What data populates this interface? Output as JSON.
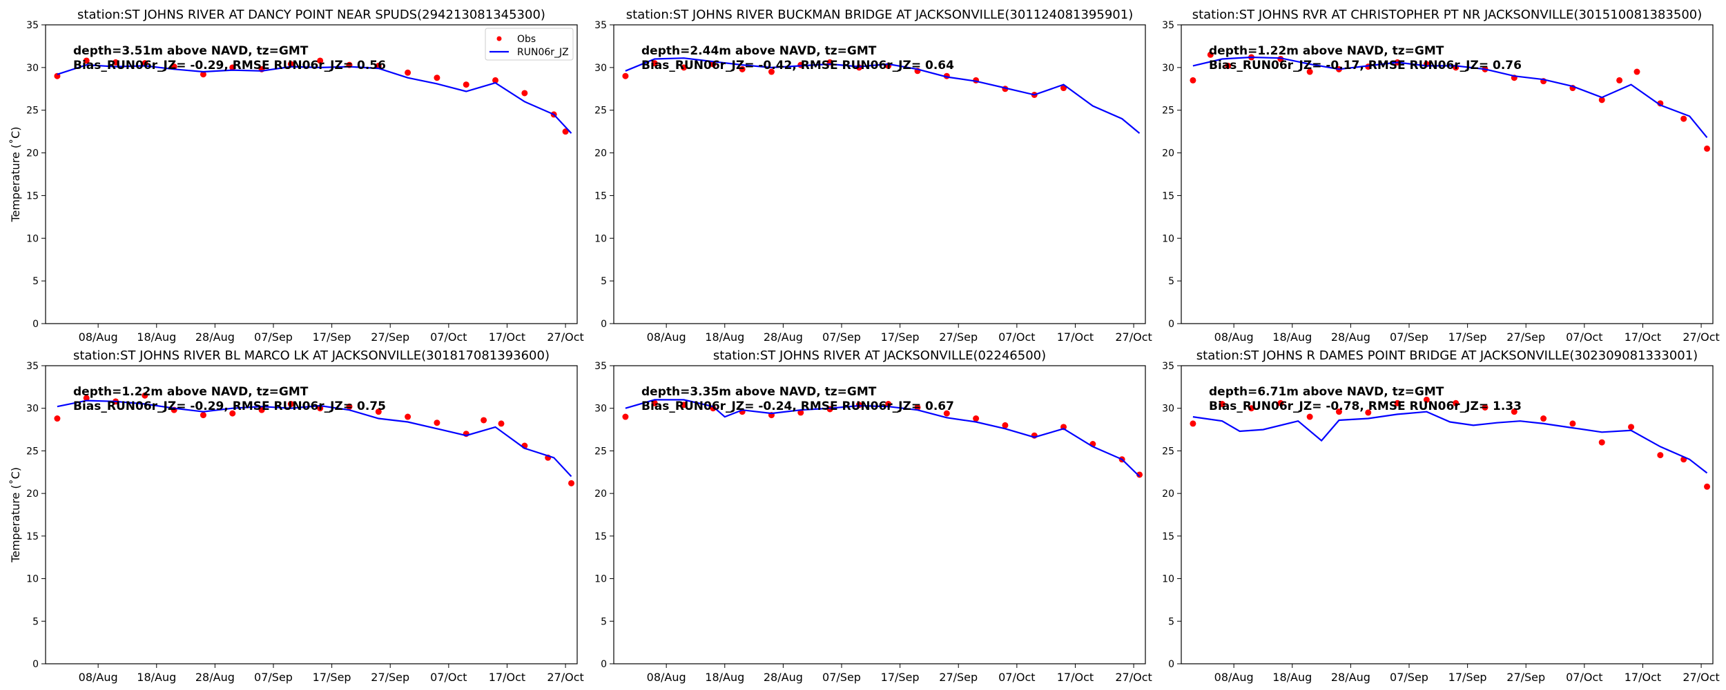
{
  "figure": {
    "ylabel": "Temperature ($^\\circ$C)",
    "ylabel_display": "Temperature (˚C)"
  },
  "chart_data": [
    {
      "type": "line",
      "title": "station:ST JOHNS RIVER AT DANCY POINT NEAR SPUDS(294213081345300)",
      "info_line1": "depth=3.51m above NAVD, tz=GMT",
      "info_line2": "Bias_RUN06r_JZ= -0.29, RMSE RUN06r_JZ= 0.56",
      "legend": [
        "Obs",
        "RUN06r_JZ"
      ],
      "xlabel": "",
      "ylabel": "Temperature (˚C)",
      "ylim": [
        0,
        35
      ],
      "yticks": [
        0,
        5,
        10,
        15,
        20,
        25,
        30,
        35
      ],
      "xticks": [
        "08/Aug",
        "18/Aug",
        "28/Aug",
        "07/Sep",
        "17/Sep",
        "27/Sep",
        "07/Oct",
        "17/Oct",
        "27/Oct"
      ],
      "series": [
        {
          "name": "Obs",
          "style": "dots",
          "color": "#ff0000",
          "x": [
            0,
            5,
            10,
            15,
            20,
            25,
            30,
            35,
            40,
            45,
            50,
            55,
            60,
            65,
            70,
            75,
            80,
            85,
            87
          ],
          "values": [
            29.0,
            30.8,
            30.6,
            30.5,
            30.1,
            29.2,
            30.0,
            29.8,
            30.4,
            30.8,
            30.3,
            30.2,
            29.4,
            28.8,
            28.0,
            28.5,
            27.0,
            24.5,
            22.5
          ]
        },
        {
          "name": "RUN06r_JZ",
          "style": "line",
          "color": "#0000ff",
          "x": [
            0,
            5,
            10,
            15,
            20,
            25,
            30,
            35,
            40,
            45,
            50,
            55,
            60,
            65,
            70,
            75,
            80,
            85,
            88
          ],
          "values": [
            29.2,
            30.3,
            30.1,
            30.2,
            29.8,
            29.5,
            29.7,
            29.6,
            30.1,
            30.0,
            30.1,
            29.9,
            28.8,
            28.1,
            27.2,
            28.2,
            26.0,
            24.5,
            22.3
          ]
        }
      ]
    },
    {
      "type": "line",
      "title": "station:ST JOHNS RIVER BUCKMAN BRIDGE AT JACKSONVILLE(301124081395901)",
      "info_line1": "depth=2.44m above NAVD, tz=GMT",
      "info_line2": "Bias_RUN06r_JZ= -0.42, RMSE RUN06r_JZ= 0.64",
      "legend": [],
      "xlabel": "",
      "ylabel": "",
      "ylim": [
        0,
        35
      ],
      "yticks": [
        0,
        5,
        10,
        15,
        20,
        25,
        30,
        35
      ],
      "xticks": [
        "08/Aug",
        "18/Aug",
        "28/Aug",
        "07/Sep",
        "17/Sep",
        "27/Sep",
        "07/Oct",
        "17/Oct",
        "27/Oct"
      ],
      "series": [
        {
          "name": "Obs",
          "style": "dots",
          "color": "#ff0000",
          "x": [
            0,
            5,
            10,
            15,
            20,
            25,
            30,
            35,
            40,
            45,
            50,
            55,
            60,
            65,
            70,
            75
          ],
          "values": [
            29.0,
            30.5,
            30.0,
            30.4,
            29.8,
            29.5,
            30.3,
            30.6,
            30.0,
            30.2,
            29.6,
            29.0,
            28.5,
            27.5,
            26.8,
            27.6
          ]
        },
        {
          "name": "RUN06r_JZ",
          "style": "line",
          "color": "#0000ff",
          "x": [
            0,
            5,
            10,
            15,
            20,
            25,
            30,
            35,
            40,
            45,
            50,
            55,
            60,
            65,
            70,
            75,
            80,
            85,
            88
          ],
          "values": [
            29.6,
            31.0,
            31.1,
            30.7,
            30.3,
            30.0,
            30.2,
            30.4,
            30.1,
            30.4,
            29.8,
            28.9,
            28.4,
            27.6,
            26.8,
            28.0,
            25.5,
            24.0,
            22.3
          ]
        }
      ]
    },
    {
      "type": "line",
      "title": "station:ST JOHNS RVR AT CHRISTOPHER PT NR JACKSONVILLE(301510081383500)",
      "info_line1": "depth=1.22m above NAVD, tz=GMT",
      "info_line2": "Bias_RUN06r_JZ= -0.17, RMSE RUN06r_JZ= 0.76",
      "legend": [],
      "xlabel": "",
      "ylabel": "",
      "ylim": [
        0,
        35
      ],
      "yticks": [
        0,
        5,
        10,
        15,
        20,
        25,
        30,
        35
      ],
      "xticks": [
        "08/Aug",
        "18/Aug",
        "28/Aug",
        "07/Sep",
        "17/Sep",
        "27/Sep",
        "07/Oct",
        "17/Oct",
        "27/Oct"
      ],
      "series": [
        {
          "name": "Obs",
          "style": "dots",
          "color": "#ff0000",
          "x": [
            0,
            3,
            6,
            10,
            15,
            20,
            25,
            30,
            35,
            40,
            45,
            50,
            55,
            60,
            65,
            70,
            73,
            76,
            80,
            84,
            88
          ],
          "values": [
            28.5,
            31.5,
            30.2,
            31.2,
            31.0,
            29.5,
            29.8,
            30.1,
            30.6,
            30.4,
            30.0,
            29.8,
            28.8,
            28.4,
            27.6,
            26.2,
            28.5,
            29.5,
            25.8,
            24.0,
            20.5
          ]
        },
        {
          "name": "RUN06r_JZ",
          "style": "line",
          "color": "#0000ff",
          "x": [
            0,
            5,
            10,
            15,
            20,
            25,
            30,
            35,
            40,
            45,
            50,
            55,
            60,
            65,
            70,
            75,
            80,
            85,
            88
          ],
          "values": [
            30.2,
            31.0,
            31.2,
            31.1,
            30.4,
            29.8,
            30.2,
            30.6,
            30.2,
            30.2,
            29.8,
            29.0,
            28.6,
            27.8,
            26.5,
            28.0,
            25.6,
            24.3,
            21.8
          ]
        }
      ]
    },
    {
      "type": "line",
      "title": "station:ST JOHNS RIVER BL MARCO LK AT JACKSONVILLE(301817081393600)",
      "info_line1": "depth=1.22m above NAVD, tz=GMT",
      "info_line2": "Bias_RUN06r_JZ= -0.29, RMSE RUN06r_JZ= 0.75",
      "legend": [],
      "xlabel": "",
      "ylabel": "Temperature (˚C)",
      "ylim": [
        0,
        35
      ],
      "yticks": [
        0,
        5,
        10,
        15,
        20,
        25,
        30,
        35
      ],
      "xticks": [
        "08/Aug",
        "18/Aug",
        "28/Aug",
        "07/Sep",
        "17/Sep",
        "27/Sep",
        "07/Oct",
        "17/Oct",
        "27/Oct"
      ],
      "series": [
        {
          "name": "Obs",
          "style": "dots",
          "color": "#ff0000",
          "x": [
            0,
            5,
            10,
            15,
            20,
            25,
            30,
            35,
            40,
            45,
            50,
            55,
            60,
            65,
            70,
            73,
            76,
            80,
            84,
            88
          ],
          "values": [
            28.8,
            31.2,
            30.8,
            31.5,
            29.8,
            29.2,
            29.4,
            29.8,
            30.5,
            30.0,
            30.2,
            29.6,
            29.0,
            28.3,
            27.0,
            28.6,
            28.2,
            25.6,
            24.2,
            21.2
          ]
        },
        {
          "name": "RUN06r_JZ",
          "style": "line",
          "color": "#0000ff",
          "x": [
            0,
            5,
            10,
            15,
            20,
            25,
            30,
            35,
            40,
            45,
            50,
            55,
            60,
            65,
            70,
            75,
            80,
            85,
            88
          ],
          "values": [
            30.2,
            30.9,
            30.8,
            30.5,
            30.0,
            29.6,
            30.0,
            30.2,
            30.0,
            30.3,
            29.8,
            28.8,
            28.4,
            27.6,
            26.8,
            27.8,
            25.3,
            24.2,
            22.0
          ]
        }
      ]
    },
    {
      "type": "line",
      "title": "station:ST JOHNS RIVER AT JACKSONVILLE(02246500)",
      "info_line1": "depth=3.35m above NAVD, tz=GMT",
      "info_line2": "Bias_RUN06r_JZ= -0.24, RMSE RUN06r_JZ= 0.67",
      "legend": [],
      "xlabel": "",
      "ylabel": "",
      "ylim": [
        0,
        35
      ],
      "yticks": [
        0,
        5,
        10,
        15,
        20,
        25,
        30,
        35
      ],
      "xticks": [
        "08/Aug",
        "18/Aug",
        "28/Aug",
        "07/Sep",
        "17/Sep",
        "27/Sep",
        "07/Oct",
        "17/Oct",
        "27/Oct"
      ],
      "series": [
        {
          "name": "Obs",
          "style": "dots",
          "color": "#ff0000",
          "x": [
            0,
            5,
            10,
            15,
            20,
            25,
            30,
            35,
            40,
            45,
            50,
            55,
            60,
            65,
            70,
            75,
            80,
            85,
            88
          ],
          "values": [
            29.0,
            30.6,
            30.4,
            30.0,
            29.6,
            29.2,
            29.5,
            29.9,
            30.4,
            30.5,
            30.1,
            29.4,
            28.8,
            28.0,
            26.8,
            27.8,
            25.8,
            24.0,
            22.2
          ]
        },
        {
          "name": "RUN06r_JZ",
          "style": "line",
          "color": "#0000ff",
          "x": [
            0,
            5,
            10,
            15,
            17,
            20,
            25,
            30,
            35,
            40,
            45,
            50,
            55,
            60,
            65,
            70,
            75,
            80,
            85,
            88
          ],
          "values": [
            30.0,
            31.0,
            31.0,
            30.2,
            29.0,
            29.8,
            29.4,
            29.8,
            30.0,
            30.3,
            30.2,
            29.8,
            28.9,
            28.4,
            27.6,
            26.6,
            27.6,
            25.5,
            24.0,
            22.0
          ]
        }
      ]
    },
    {
      "type": "line",
      "title": "station:ST JOHNS R DAMES POINT BRIDGE AT JACKSONVILLE(302309081333001)",
      "info_line1": "depth=6.71m above NAVD, tz=GMT",
      "info_line2": "Bias_RUN06r_JZ= -0.78, RMSE RUN06r_JZ= 1.33",
      "legend": [],
      "xlabel": "",
      "ylabel": "",
      "ylim": [
        0,
        35
      ],
      "yticks": [
        0,
        5,
        10,
        15,
        20,
        25,
        30,
        35
      ],
      "xticks": [
        "08/Aug",
        "18/Aug",
        "28/Aug",
        "07/Sep",
        "17/Sep",
        "27/Sep",
        "07/Oct",
        "17/Oct",
        "27/Oct"
      ],
      "series": [
        {
          "name": "Obs",
          "style": "dots",
          "color": "#ff0000",
          "x": [
            0,
            5,
            10,
            15,
            20,
            25,
            30,
            35,
            40,
            45,
            50,
            55,
            60,
            65,
            70,
            75,
            80,
            84,
            88
          ],
          "values": [
            28.2,
            30.5,
            30.0,
            30.6,
            29.0,
            29.6,
            29.5,
            30.6,
            31.0,
            30.6,
            30.1,
            29.6,
            28.8,
            28.2,
            26.0,
            27.8,
            24.5,
            24.0,
            20.8
          ]
        },
        {
          "name": "RUN06r_JZ",
          "style": "line",
          "color": "#0000ff",
          "x": [
            0,
            5,
            8,
            12,
            18,
            22,
            25,
            30,
            35,
            40,
            44,
            48,
            52,
            56,
            60,
            65,
            70,
            75,
            80,
            85,
            88
          ],
          "values": [
            29.0,
            28.5,
            27.3,
            27.5,
            28.5,
            26.2,
            28.6,
            28.8,
            29.3,
            29.6,
            28.4,
            28.0,
            28.3,
            28.5,
            28.2,
            27.7,
            27.2,
            27.4,
            25.5,
            24.0,
            22.4
          ]
        }
      ]
    }
  ]
}
